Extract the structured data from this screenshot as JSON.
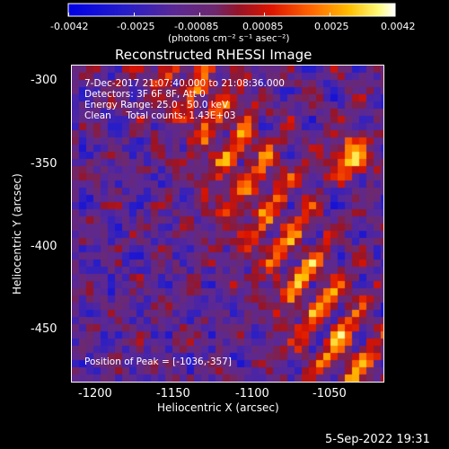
{
  "colorbar": {
    "tick_labels": [
      "-0.0042",
      "-0.0025",
      "-0.00085",
      "0.00085",
      "0.0025",
      "0.0042"
    ],
    "unit": "(photons cm⁻² s⁻¹ asec⁻²)",
    "min": -0.0042,
    "max": 0.0042,
    "colormap": "blue-purple-red-yellow-white"
  },
  "image": {
    "title": "Reconstructed RHESSI Image",
    "overlay": {
      "line1": "7-Dec-2017 21:07:40.000 to 21:08:36.000",
      "line2": "Detectors: 3F 6F 8F, Att 0",
      "line3": "Energy Range: 25.0 - 50.0 keV",
      "line4": "Clean     Total counts: 1.43E+03",
      "peak": "Position of Peak = [-1036,-357]"
    }
  },
  "axes": {
    "x_label": "Heliocentric X (arcsec)",
    "y_label": "Heliocentric Y (arcsec)",
    "x_ticks": [
      "-1200",
      "-1150",
      "-1100",
      "-1050"
    ],
    "y_ticks": [
      "-300",
      "-350",
      "-400",
      "-450"
    ],
    "x_range": [
      -1210,
      -1012
    ],
    "y_range": [
      -488,
      -288
    ]
  },
  "footer": {
    "timestamp": "5-Sep-2022 19:31"
  }
}
